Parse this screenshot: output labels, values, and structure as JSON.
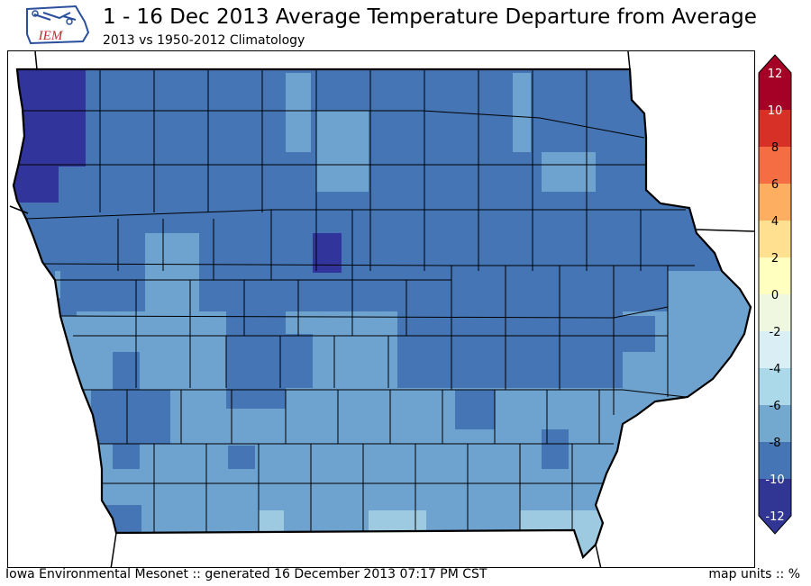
{
  "header": {
    "logo_text": "IEM",
    "title": "1 - 16 Dec 2013 Average Temperature Departure from Average",
    "subtitle": "2013 vs 1950-2012 Climatology"
  },
  "footer": {
    "credit": "Iowa Environmental Mesonet :: generated 16 December 2013 07:17 PM CST",
    "units": "map units :: %"
  },
  "legend": {
    "ticks": [
      "12",
      "10",
      "8",
      "6",
      "4",
      "2",
      "0",
      "-2",
      "-4",
      "-6",
      "-8",
      "-10",
      "-12"
    ],
    "bins": [
      {
        "color": "#a50026"
      },
      {
        "color": "#d73027"
      },
      {
        "color": "#f46d43"
      },
      {
        "color": "#fdae61"
      },
      {
        "color": "#fee090"
      },
      {
        "color": "#ffffbf"
      },
      {
        "color": "#f0f7e0"
      },
      {
        "color": "#d9eef5"
      },
      {
        "color": "#abd9e9"
      },
      {
        "color": "#74a9cf"
      },
      {
        "color": "#4575b4"
      },
      {
        "color": "#313695"
      }
    ]
  },
  "colors": {
    "dark": "#31349a",
    "mid": "#4575b4",
    "light": "#6ea3cf",
    "lighter": "#9ecae1"
  }
}
